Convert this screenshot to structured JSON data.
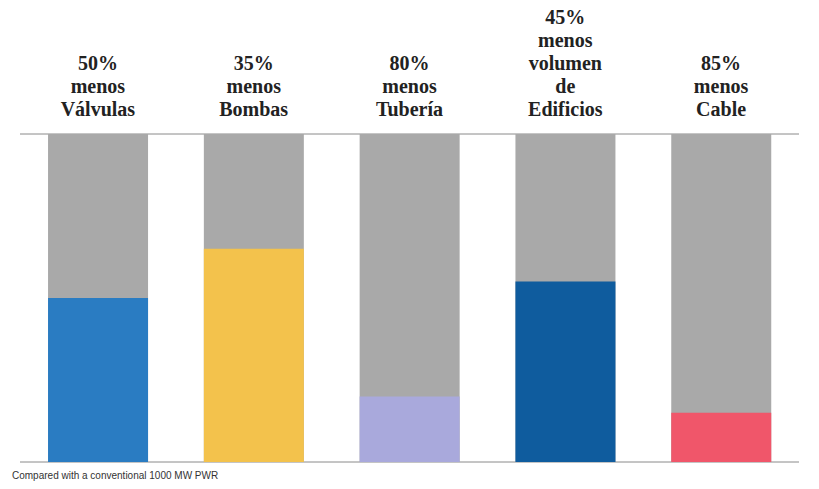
{
  "chart_data": {
    "type": "bar",
    "categories": [
      "menos Válvulas",
      "menos Bombas",
      "menos Tubería",
      "menos volumen de Edificios",
      "menos Cable"
    ],
    "reduction_labels": [
      "50%",
      "35%",
      "80%",
      "45%",
      "85%"
    ],
    "values": [
      50,
      65,
      20,
      55,
      15
    ],
    "colors": [
      "#2a7cc2",
      "#f3c24c",
      "#a9a9dc",
      "#0f5c9e",
      "#f0566a"
    ],
    "ylim": [
      0,
      100
    ],
    "yticks": [
      0,
      10,
      20,
      30,
      40,
      50,
      60,
      70,
      80,
      90,
      100
    ],
    "grid": true,
    "tick_labels": false,
    "caption": "Compared with a conventional 1000 MW PWR"
  }
}
